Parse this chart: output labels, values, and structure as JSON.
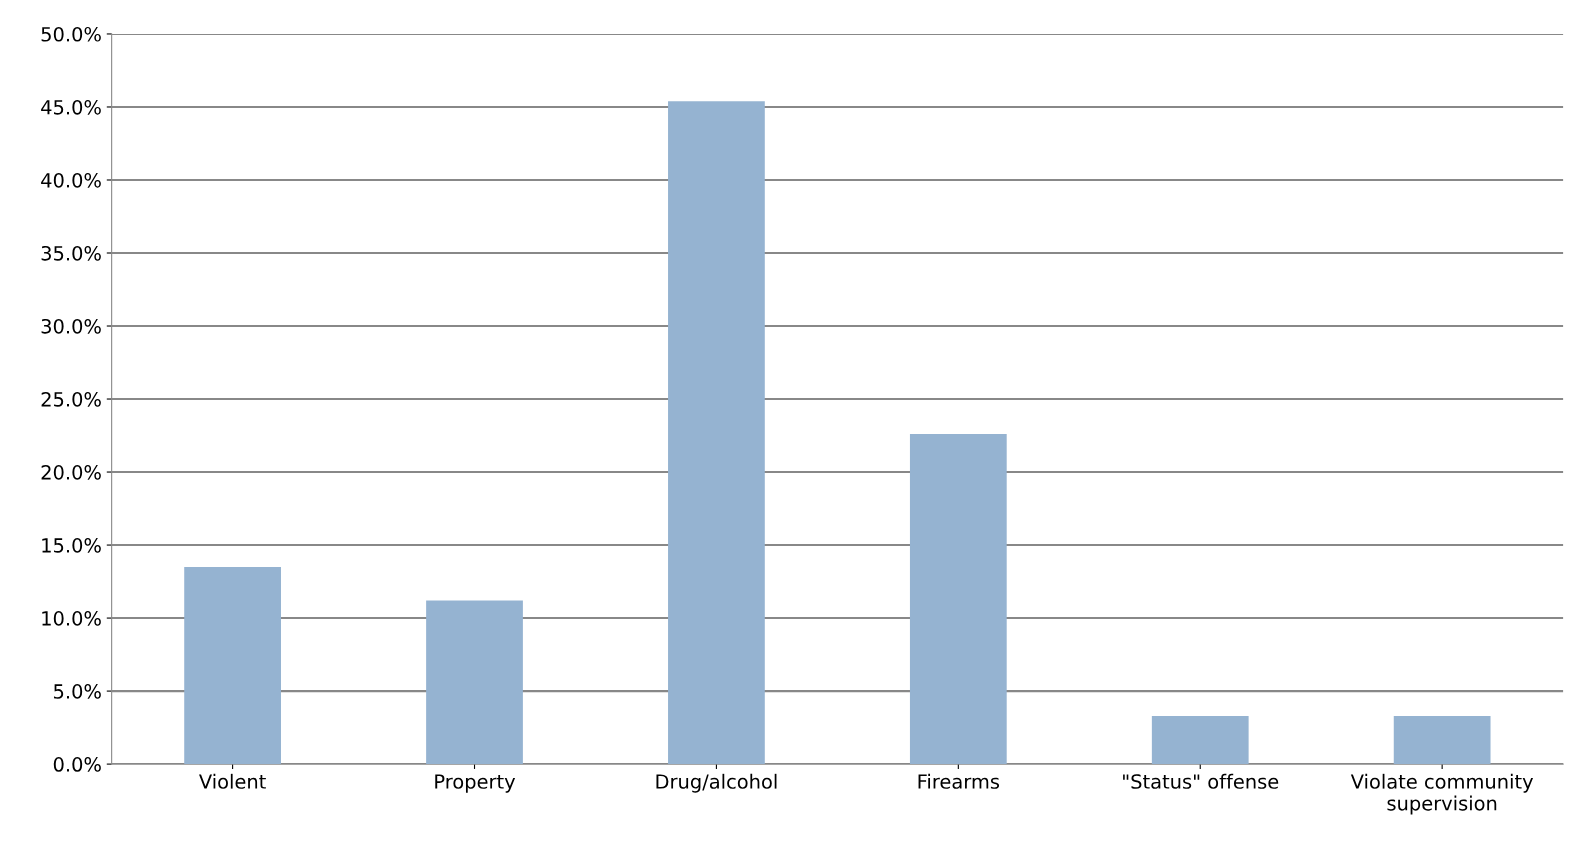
{
  "chart_data": {
    "type": "bar",
    "categories": [
      "Violent",
      "Property",
      "Drug/alcohol",
      "Firearms",
      "\"Status\" offense",
      "Violate community\nsupervision"
    ],
    "values": [
      13.5,
      11.2,
      45.4,
      22.6,
      3.3,
      3.3
    ],
    "color": "#95b3d1",
    "ylim": [
      0,
      50
    ],
    "yticks": [
      {
        "value": 0,
        "label": "0.0%"
      },
      {
        "value": 5,
        "label": "5.0%"
      },
      {
        "value": 10,
        "label": "10.0%"
      },
      {
        "value": 15,
        "label": "15.0%"
      },
      {
        "value": 20,
        "label": "20.0%"
      },
      {
        "value": 25,
        "label": "25.0%"
      },
      {
        "value": 30,
        "label": "30.0%"
      },
      {
        "value": 35,
        "label": "35.0%"
      },
      {
        "value": 40,
        "label": "40.0%"
      },
      {
        "value": 45,
        "label": "45.0%"
      },
      {
        "value": 50,
        "label": "50.0%"
      }
    ],
    "grid": "y",
    "legend": false
  }
}
